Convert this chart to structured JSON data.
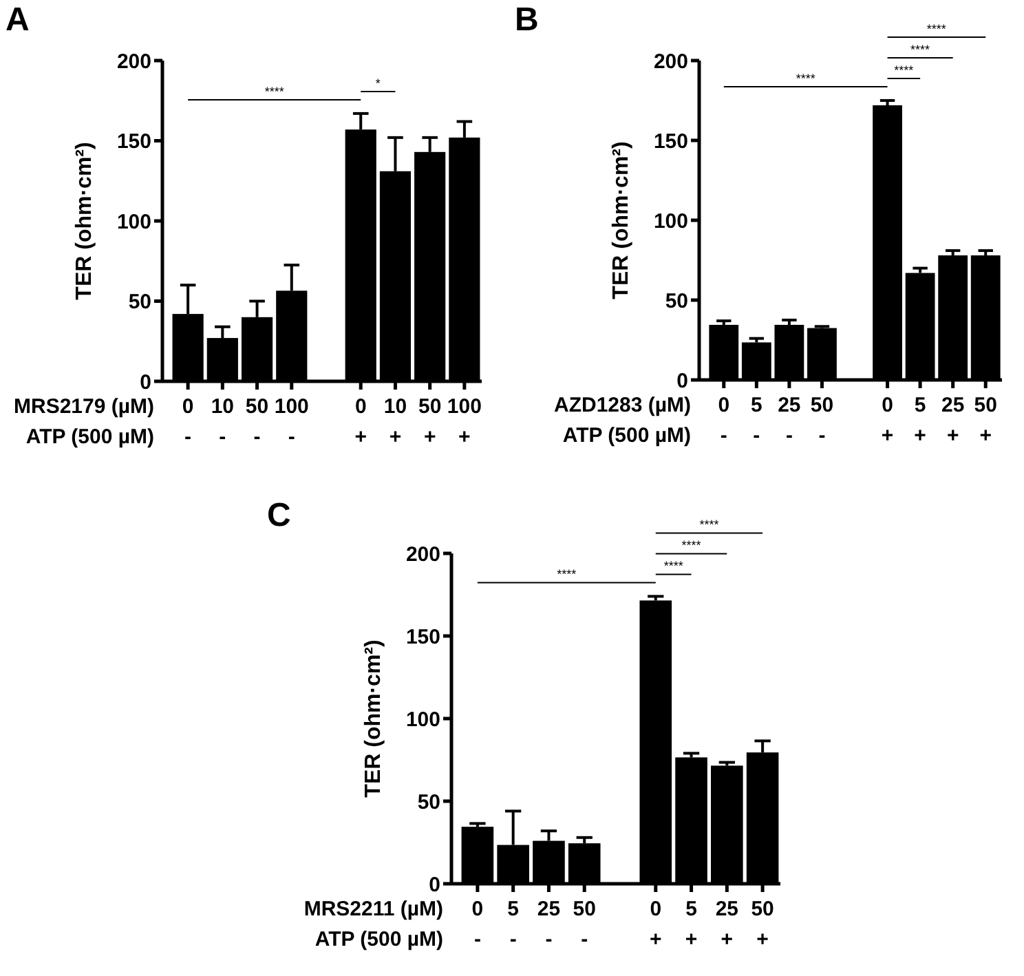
{
  "chart_data": [
    {
      "type": "bar",
      "title": "A",
      "ylabel": "TER (ohm·cm²)",
      "xlabel": "MRS2179 (µM)\nATP (500 µM)",
      "categories": [
        "0\n-",
        "10\n-",
        "50\n-",
        "100\n-",
        null,
        "0\n+",
        "10\n+",
        "50\n+",
        "100\n+"
      ],
      "values": [
        42,
        27,
        40,
        56.5,
        null,
        157,
        131,
        143,
        152
      ],
      "errors": [
        [
          42,
          60
        ],
        [
          27,
          34
        ],
        [
          40,
          50
        ],
        [
          56.5,
          72.5
        ],
        null,
        [
          157,
          167
        ],
        [
          131,
          152
        ],
        [
          143,
          152
        ],
        [
          152,
          162
        ]
      ],
      "color": "#000000",
      "ylim": [
        0,
        200
      ],
      "yticks": [
        0,
        50,
        100,
        150,
        200
      ],
      "annotations": [
        "****",
        "*"
      ]
    },
    {
      "type": "bar",
      "title": "B",
      "ylabel": "TER (ohm·cm²)",
      "xlabel": "AZD1283 (µM)\nATP (500 µM)",
      "categories": [
        "0\n-",
        "5\n-",
        "25\n-",
        "50\n-",
        null,
        "0\n+",
        "5\n+",
        "25\n+",
        "50\n+"
      ],
      "values": [
        34.5,
        23.5,
        34.5,
        32.5,
        null,
        172,
        67,
        78,
        78
      ],
      "errors": [
        [
          34.5,
          37
        ],
        [
          23.5,
          26
        ],
        [
          34.5,
          37.5
        ],
        [
          32.5,
          33.5
        ],
        null,
        [
          172,
          175
        ],
        [
          67,
          70
        ],
        [
          78,
          81
        ],
        [
          78,
          81
        ]
      ],
      "color": "#000000",
      "ylim": [
        0,
        200
      ],
      "yticks": [
        0,
        50,
        100,
        150,
        200
      ],
      "annotations": [
        "****",
        "****",
        "****",
        "****"
      ]
    },
    {
      "type": "bar",
      "title": "C",
      "ylabel": "TER (ohm·cm²)",
      "xlabel": "MRS2211 (µM)\nATP (500 µM)",
      "categories": [
        "0\n-",
        "5\n-",
        "25\n-",
        "50\n-",
        null,
        "0\n+",
        "5\n+",
        "25\n+",
        "50\n+"
      ],
      "values": [
        34.5,
        23.5,
        26,
        24.5,
        null,
        171.5,
        76.5,
        71.5,
        79.5
      ],
      "errors": [
        [
          34.5,
          36.5
        ],
        [
          23.5,
          44
        ],
        [
          26,
          32
        ],
        [
          24.5,
          28
        ],
        null,
        [
          171.5,
          174
        ],
        [
          76.5,
          79
        ],
        [
          71.5,
          73.5
        ],
        [
          79.5,
          86.5
        ]
      ],
      "color": "#000000",
      "ylim": [
        0,
        200
      ],
      "yticks": [
        0,
        50,
        100,
        150,
        200
      ],
      "annotations": [
        "****",
        "****",
        "****",
        "****"
      ]
    }
  ]
}
